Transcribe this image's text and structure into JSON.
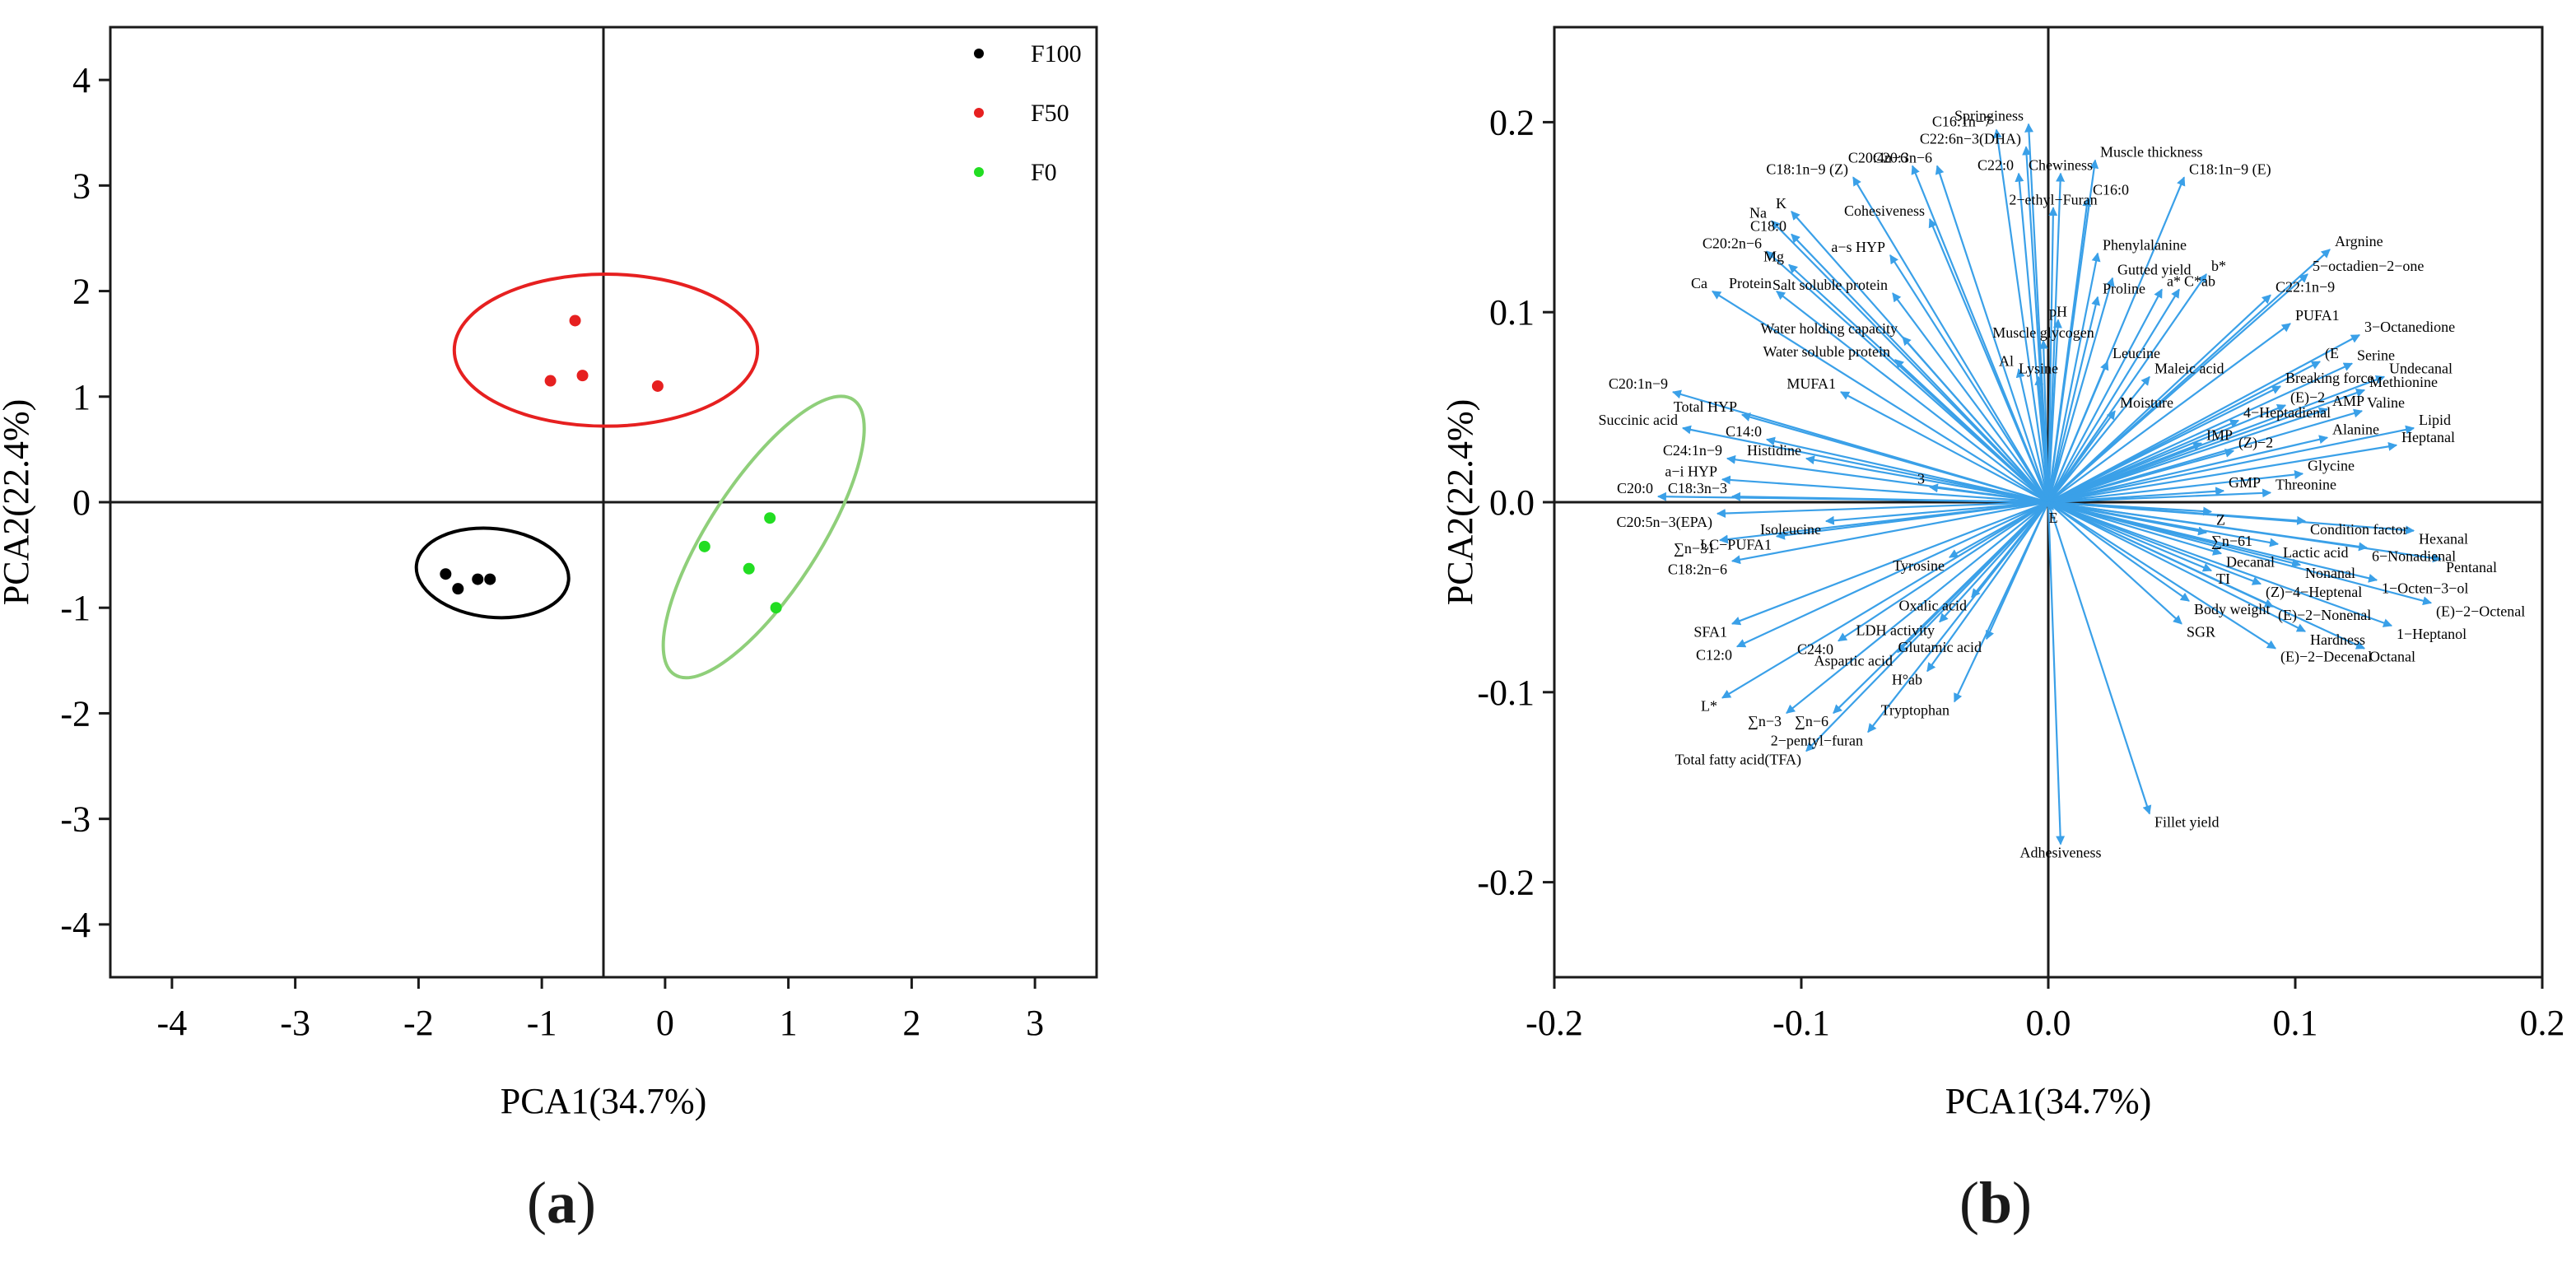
{
  "panels": [
    {
      "tag_open": "(",
      "tag_letter": "a",
      "tag_close": ")"
    },
    {
      "tag_open": "(",
      "tag_letter": "b",
      "tag_close": ")"
    }
  ],
  "colors": {
    "F100": "#000000",
    "F50": "#e62020",
    "F0": "#22dd22",
    "F0_ellipse": "#8fcf7a",
    "vector": "#3aa0e8",
    "frame": "#1a1a1a"
  },
  "chart_data": [
    {
      "type": "scatter",
      "title": "",
      "xlabel": "PCA1(34.7%)",
      "ylabel": "PCA2(22.4%)",
      "xlim": [
        -4.5,
        3.5
      ],
      "ylim": [
        -4.5,
        4.5
      ],
      "xticks": [
        -4,
        -3,
        -2,
        -1,
        0,
        1,
        2,
        3
      ],
      "yticks": [
        -4,
        -3,
        -2,
        -1,
        0,
        1,
        2,
        3,
        4
      ],
      "xtick_labels": [
        "-4",
        "-3",
        "-2",
        "-1",
        "0",
        "1",
        "2",
        "3"
      ],
      "ytick_labels": [
        "-4",
        "-3",
        "-2",
        "-1",
        "0",
        "1",
        "2",
        "3",
        "4"
      ],
      "reference_lines": {
        "vertical_x": -0.5,
        "horizontal_y": 0
      },
      "legend": {
        "position": "top-right",
        "entries": [
          "F100",
          "F50",
          "F0"
        ]
      },
      "series": [
        {
          "name": "F100",
          "points": [
            [
              -1.78,
              -0.68
            ],
            [
              -1.68,
              -0.82
            ],
            [
              -1.52,
              -0.73
            ],
            [
              -1.42,
              -0.73
            ]
          ],
          "ellipse": {
            "cx": -1.4,
            "cy": -0.67,
            "rx": 0.62,
            "ry": 0.42,
            "angle": -6
          }
        },
        {
          "name": "F50",
          "points": [
            [
              -0.93,
              1.15
            ],
            [
              -0.73,
              1.72
            ],
            [
              -0.67,
              1.2
            ],
            [
              -0.06,
              1.1
            ]
          ],
          "ellipse": {
            "cx": -0.48,
            "cy": 1.44,
            "rx": 1.23,
            "ry": 0.72,
            "angle": 0
          }
        },
        {
          "name": "F0",
          "points": [
            [
              0.32,
              -0.42
            ],
            [
              0.68,
              -0.63
            ],
            [
              0.85,
              -0.15
            ],
            [
              0.9,
              -1.0
            ]
          ],
          "ellipse": {
            "cx": 0.8,
            "cy": -0.33,
            "rx": 1.33,
            "ry": 0.52,
            "angle": 57
          }
        }
      ]
    },
    {
      "type": "scatter",
      "subtype": "biplot-loadings",
      "title": "",
      "xlabel": "PCA1(34.7%)",
      "ylabel": "PCA2(22.4%)",
      "xlim": [
        -0.2,
        0.2
      ],
      "ylim": [
        -0.25,
        0.25
      ],
      "xticks": [
        -0.2,
        -0.1,
        0.0,
        0.1,
        0.2
      ],
      "yticks": [
        -0.2,
        -0.1,
        0.0,
        0.1,
        0.2
      ],
      "xtick_labels": [
        "-0.2",
        "-0.1",
        "0.0",
        "0.1",
        "0.2"
      ],
      "ytick_labels": [
        "-0.2",
        "-0.1",
        "0.0",
        "0.1",
        "0.2"
      ],
      "reference_lines": {
        "vertical_x": 0,
        "horizontal_y": 0
      },
      "vectors": [
        {
          "label": "C16:1n−7",
          "x": -0.021,
          "y": 0.196
        },
        {
          "label": "Springiness",
          "x": -0.008,
          "y": 0.199
        },
        {
          "label": "C22:6n−3(DHA)",
          "x": -0.009,
          "y": 0.187
        },
        {
          "label": "Muscle thickness",
          "x": 0.019,
          "y": 0.18
        },
        {
          "label": "C20:4n−6",
          "x": -0.055,
          "y": 0.177
        },
        {
          "label": "C20:3n−6",
          "x": -0.045,
          "y": 0.177
        },
        {
          "label": "C22:0",
          "x": -0.012,
          "y": 0.173
        },
        {
          "label": "Chewiness",
          "x": 0.005,
          "y": 0.173
        },
        {
          "label": "C18:1n−9 (E)",
          "x": 0.055,
          "y": 0.171
        },
        {
          "label": "C18:1n−9 (Z)",
          "x": -0.079,
          "y": 0.171
        },
        {
          "label": "C16:0",
          "x": 0.016,
          "y": 0.16
        },
        {
          "label": "2−ethyl−Furan",
          "x": 0.002,
          "y": 0.155
        },
        {
          "label": "Cohesiveness",
          "x": -0.048,
          "y": 0.149
        },
        {
          "label": "Na",
          "x": -0.112,
          "y": 0.148
        },
        {
          "label": "K",
          "x": -0.104,
          "y": 0.153
        },
        {
          "label": "C18:0",
          "x": -0.104,
          "y": 0.141
        },
        {
          "label": "a−s HYP",
          "x": -0.064,
          "y": 0.13
        },
        {
          "label": "C20:2n−6",
          "x": -0.114,
          "y": 0.132
        },
        {
          "label": "Mg",
          "x": -0.105,
          "y": 0.125
        },
        {
          "label": "Phenylalanine",
          "x": 0.02,
          "y": 0.131
        },
        {
          "label": "Argnine",
          "x": 0.114,
          "y": 0.133
        },
        {
          "label": "b*",
          "x": 0.064,
          "y": 0.12
        },
        {
          "label": "5−octadien−2−one",
          "x": 0.105,
          "y": 0.12
        },
        {
          "label": "Gutted yield",
          "x": 0.026,
          "y": 0.118
        },
        {
          "label": "a*",
          "x": 0.046,
          "y": 0.112
        },
        {
          "label": "C*ab",
          "x": 0.053,
          "y": 0.112
        },
        {
          "label": "C22:1n−9",
          "x": 0.09,
          "y": 0.109
        },
        {
          "label": "Ca",
          "x": -0.136,
          "y": 0.111
        },
        {
          "label": "Protein",
          "x": -0.11,
          "y": 0.111
        },
        {
          "label": "Salt soluble protein",
          "x": -0.063,
          "y": 0.11
        },
        {
          "label": "Proline",
          "x": 0.02,
          "y": 0.108
        },
        {
          "label": "pH",
          "x": 0.004,
          "y": 0.096
        },
        {
          "label": "PUFA1",
          "x": 0.098,
          "y": 0.094
        },
        {
          "label": "3−Octanedione",
          "x": 0.126,
          "y": 0.088
        },
        {
          "label": "Muscle glycogen",
          "x": -0.002,
          "y": 0.085
        },
        {
          "label": "Water holding capacity",
          "x": -0.059,
          "y": 0.087
        },
        {
          "label": "Water soluble protein",
          "x": -0.062,
          "y": 0.075
        },
        {
          "label": "(E",
          "x": 0.11,
          "y": 0.074
        },
        {
          "label": "Serine",
          "x": 0.123,
          "y": 0.073
        },
        {
          "label": "Undecanal",
          "x": 0.136,
          "y": 0.066
        },
        {
          "label": "Leucine",
          "x": 0.024,
          "y": 0.074
        },
        {
          "label": "Al",
          "x": -0.012,
          "y": 0.07
        },
        {
          "label": "Lysine",
          "x": -0.004,
          "y": 0.066
        },
        {
          "label": "Maleic acid",
          "x": 0.041,
          "y": 0.066
        },
        {
          "label": "Breaking force",
          "x": 0.094,
          "y": 0.061
        },
        {
          "label": "Methionine",
          "x": 0.128,
          "y": 0.059
        },
        {
          "label": "MUFA1",
          "x": -0.084,
          "y": 0.058
        },
        {
          "label": "C20:1n−9",
          "x": -0.152,
          "y": 0.058
        },
        {
          "label": "(E)−2",
          "x": 0.096,
          "y": 0.051
        },
        {
          "label": "AMP",
          "x": 0.113,
          "y": 0.049
        },
        {
          "label": "Valine",
          "x": 0.127,
          "y": 0.048
        },
        {
          "label": "Total HYP",
          "x": -0.124,
          "y": 0.046
        },
        {
          "label": "Moisture",
          "x": 0.027,
          "y": 0.048
        },
        {
          "label": "4−Heptadienal",
          "x": 0.077,
          "y": 0.043
        },
        {
          "label": "Lipid",
          "x": 0.148,
          "y": 0.039
        },
        {
          "label": "Succinic acid",
          "x": -0.148,
          "y": 0.039
        },
        {
          "label": "C14:0",
          "x": -0.114,
          "y": 0.033
        },
        {
          "label": "Alanine",
          "x": 0.113,
          "y": 0.034
        },
        {
          "label": "Heptanal",
          "x": 0.141,
          "y": 0.03
        },
        {
          "label": "IMP",
          "x": 0.062,
          "y": 0.031
        },
        {
          "label": "(Z)−2",
          "x": 0.075,
          "y": 0.027
        },
        {
          "label": "C24:1n−9",
          "x": -0.13,
          "y": 0.023
        },
        {
          "label": "Histidine",
          "x": -0.098,
          "y": 0.023
        },
        {
          "label": "3",
          "x": -0.048,
          "y": 0.008
        },
        {
          "label": "Glycine",
          "x": 0.103,
          "y": 0.015
        },
        {
          "label": "a−i HYP",
          "x": -0.132,
          "y": 0.012
        },
        {
          "label": "GMP",
          "x": 0.071,
          "y": 0.006
        },
        {
          "label": "Threonine",
          "x": 0.09,
          "y": 0.005
        },
        {
          "label": "C20:0",
          "x": -0.158,
          "y": 0.003
        },
        {
          "label": "C18:3n−3",
          "x": -0.128,
          "y": 0.003
        },
        {
          "label": "C20:5n−3(EPA)",
          "x": -0.134,
          "y": -0.006
        },
        {
          "label": "Isoleucine",
          "x": -0.09,
          "y": -0.01
        },
        {
          "label": "E",
          "x": 0.002,
          "y": -0.004
        },
        {
          "label": "Z",
          "x": 0.066,
          "y": -0.005
        },
        {
          "label": "Condition factor",
          "x": 0.104,
          "y": -0.01
        },
        {
          "label": "Hexanal",
          "x": 0.148,
          "y": -0.015
        },
        {
          "label": "LC−PUFA1",
          "x": -0.11,
          "y": -0.018
        },
        {
          "label": "∑n−31",
          "x": -0.133,
          "y": -0.02
        },
        {
          "label": "∑n−61",
          "x": 0.064,
          "y": -0.016
        },
        {
          "label": "Lactic acid",
          "x": 0.093,
          "y": -0.022
        },
        {
          "label": "6−Nonadienal",
          "x": 0.129,
          "y": -0.024
        },
        {
          "label": "C18:2n−6",
          "x": -0.128,
          "y": -0.031
        },
        {
          "label": "Tyrosine",
          "x": -0.04,
          "y": -0.029
        },
        {
          "label": "Decanal",
          "x": 0.07,
          "y": -0.027
        },
        {
          "label": "Pentanal",
          "x": 0.159,
          "y": -0.03
        },
        {
          "label": "Nonanal",
          "x": 0.102,
          "y": -0.033
        },
        {
          "label": "TI",
          "x": 0.066,
          "y": -0.036
        },
        {
          "label": "1−Octen−3−ol",
          "x": 0.133,
          "y": -0.041
        },
        {
          "label": "(Z)−4−Heptenal",
          "x": 0.086,
          "y": -0.043
        },
        {
          "label": "(E)−2−Octenal",
          "x": 0.155,
          "y": -0.053
        },
        {
          "label": "Oxalic acid",
          "x": -0.031,
          "y": -0.05
        },
        {
          "label": "(E)−2−Nonenal",
          "x": 0.091,
          "y": -0.055
        },
        {
          "label": "Body weight",
          "x": 0.057,
          "y": -0.052
        },
        {
          "label": "1−Heptanol",
          "x": 0.139,
          "y": -0.065
        },
        {
          "label": "SFA1",
          "x": -0.128,
          "y": -0.064
        },
        {
          "label": "SGR",
          "x": 0.054,
          "y": -0.064
        },
        {
          "label": "LDH activity",
          "x": -0.044,
          "y": -0.063
        },
        {
          "label": "C12:0",
          "x": -0.126,
          "y": -0.076
        },
        {
          "label": "Hardness",
          "x": 0.104,
          "y": -0.068
        },
        {
          "label": "Glutamic acid",
          "x": -0.025,
          "y": -0.072
        },
        {
          "label": "C24:0",
          "x": -0.085,
          "y": -0.073
        },
        {
          "label": "(E)−2−Decenal",
          "x": 0.092,
          "y": -0.077
        },
        {
          "label": "Octanal",
          "x": 0.128,
          "y": -0.077
        },
        {
          "label": "Aspartic acid",
          "x": -0.061,
          "y": -0.079
        },
        {
          "label": "H°ab",
          "x": -0.049,
          "y": -0.089
        },
        {
          "label": "Tryptophan",
          "x": -0.038,
          "y": -0.105
        },
        {
          "label": "L*",
          "x": -0.132,
          "y": -0.103
        },
        {
          "label": "∑n−3",
          "x": -0.106,
          "y": -0.111
        },
        {
          "label": "∑n−6",
          "x": -0.087,
          "y": -0.111
        },
        {
          "label": "2−pentyl−furan",
          "x": -0.073,
          "y": -0.121
        },
        {
          "label": "Total fatty acid(TFA)",
          "x": -0.098,
          "y": -0.131
        },
        {
          "label": "Fillet yield",
          "x": 0.041,
          "y": -0.164
        },
        {
          "label": "Adhesiveness",
          "x": 0.005,
          "y": -0.18
        }
      ]
    }
  ]
}
